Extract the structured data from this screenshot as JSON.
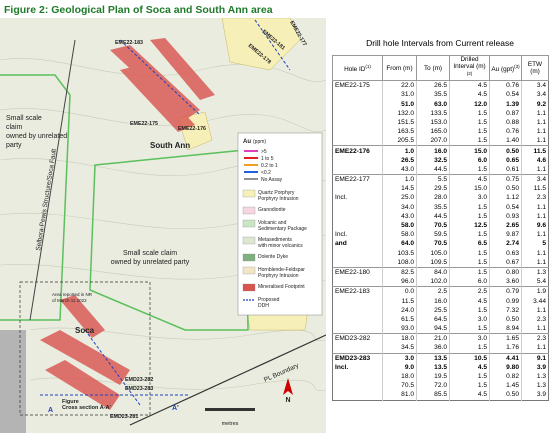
{
  "map": {
    "title": "Figure 2: Geological Plan of Soca and South Ann area",
    "areas": [
      "South Ann",
      "Soca"
    ],
    "claim_labels": [
      [
        "Small scale",
        "claim",
        "owned by unrelated",
        "party"
      ],
      [
        "Small scale claim",
        "owned by unrelated party"
      ]
    ],
    "fault_label": "Selbora-Pewis Structure/Soca Fault",
    "boundary_label": "PL Boundary",
    "note": [
      "Area reported in NR",
      "of March 11 2022"
    ],
    "section_label": [
      "Figure",
      "Cross section A-A'"
    ],
    "section_ends": [
      "A",
      "A'"
    ],
    "holes_north": [
      "EME22-183",
      "EME22-175",
      "EME22-176",
      "EME22-181",
      "EME22-178",
      "EME22-177"
    ],
    "holes_south": [
      "EMD23-282",
      "EMD23-283",
      "EMD23-281"
    ],
    "scale_unit": "metres",
    "north": "N"
  },
  "legend": {
    "title": "Au",
    "unit": "(ppm)",
    "grades": [
      {
        "label": ">5",
        "color": "#e040c0"
      },
      {
        "label": "1 to 5",
        "color": "#e02020"
      },
      {
        "label": "0.2 to 1",
        "color": "#f0a020"
      },
      {
        "label": "<0.2",
        "color": "#2060e0"
      },
      {
        "label": "No Assay",
        "color": "#909090"
      }
    ],
    "units": [
      {
        "lines": [
          "Quartz Porphyry",
          "Porphyry Intrusion"
        ],
        "color": "#f6efb8"
      },
      {
        "lines": [
          "Granodiorite"
        ],
        "color": "#f4d7e0"
      },
      {
        "lines": [
          "Volcanic and",
          "Sedimentary Package"
        ],
        "color": "#c9e6c4"
      },
      {
        "lines": [
          "Metasediments",
          "with minor volcanics"
        ],
        "color": "#dfe6d2"
      },
      {
        "lines": [
          "Dolerite Dyke"
        ],
        "color": "#7fb07f"
      },
      {
        "lines": [
          "Hornblende-Feldspar",
          "Porphyry Intrusion"
        ],
        "color": "#f2e6c8"
      },
      {
        "lines": [
          "Mineralised Footprint"
        ],
        "color": "#d9534f"
      },
      {
        "lines": [
          "Proposed",
          "DDH"
        ],
        "color": "#2040c0"
      }
    ]
  },
  "table": {
    "title": "Drill hole Intervals from Current release",
    "headers": [
      {
        "text": "Hole ID",
        "note": "(1)"
      },
      {
        "text": "From (m)"
      },
      {
        "text": "To (m)"
      },
      {
        "text": "Drilled Interval (m)",
        "note": "(2)"
      },
      {
        "text": "Au (gpt)",
        "note": "(3)"
      },
      {
        "text": "ETW (m)"
      }
    ],
    "rows": [
      {
        "cells": [
          "EME22-175",
          "22.0",
          "26.5",
          "4.5",
          "0.76",
          "3.4"
        ]
      },
      {
        "cells": [
          "",
          "31.0",
          "35.5",
          "4.5",
          "0.54",
          "3.4"
        ]
      },
      {
        "cells": [
          "",
          "51.0",
          "63.0",
          "12.0",
          "1.39",
          "9.2"
        ],
        "bold": true
      },
      {
        "cells": [
          "",
          "132.0",
          "133.5",
          "1.5",
          "0.87",
          "1.1"
        ]
      },
      {
        "cells": [
          "",
          "151.5",
          "153.0",
          "1.5",
          "0.88",
          "1.1"
        ]
      },
      {
        "cells": [
          "",
          "163.5",
          "165.0",
          "1.5",
          "0.76",
          "1.1"
        ]
      },
      {
        "cells": [
          "",
          "205.5",
          "207.0",
          "1.5",
          "1.40",
          "1.1"
        ]
      },
      {
        "cells": [
          "EME22-176",
          "1.0",
          "16.0",
          "15.0",
          "0.50",
          "11.5"
        ],
        "bold": true
      },
      {
        "cells": [
          "",
          "26.5",
          "32.5",
          "6.0",
          "0.65",
          "4.6"
        ],
        "bold": true
      },
      {
        "cells": [
          "",
          "43.0",
          "44.5",
          "1.5",
          "0.61",
          "1.1"
        ]
      },
      {
        "cells": [
          "EME22-177",
          "1.0",
          "5.5",
          "4.5",
          "0.75",
          "3.4"
        ]
      },
      {
        "cells": [
          "",
          "14.5",
          "29.5",
          "15.0",
          "0.50",
          "11.5"
        ]
      },
      {
        "cells": [
          "Incl.",
          "25.0",
          "28.0",
          "3.0",
          "1.12",
          "2.3"
        ]
      },
      {
        "cells": [
          "",
          "34.0",
          "35.5",
          "1.5",
          "0.54",
          "1.1"
        ]
      },
      {
        "cells": [
          "",
          "43.0",
          "44.5",
          "1.5",
          "0.93",
          "1.1"
        ]
      },
      {
        "cells": [
          "",
          "58.0",
          "70.5",
          "12.5",
          "2.65",
          "9.6"
        ],
        "bold": true
      },
      {
        "cells": [
          "Incl.",
          "58.0",
          "59.5",
          "1.5",
          "9.87",
          "1.1"
        ]
      },
      {
        "cells": [
          "and",
          "64.0",
          "70.5",
          "6.5",
          "2.74",
          "5"
        ],
        "bold": true
      },
      {
        "cells": [
          "",
          "103.5",
          "105.0",
          "1.5",
          "0.63",
          "1.1"
        ]
      },
      {
        "cells": [
          "",
          "108.0",
          "109.5",
          "1.5",
          "0.67",
          "1.1"
        ]
      },
      {
        "cells": [
          "EME22-180",
          "82.5",
          "84.0",
          "1.5",
          "0.80",
          "1.3"
        ]
      },
      {
        "cells": [
          "",
          "96.0",
          "102.0",
          "6.0",
          "3.60",
          "5.4"
        ]
      },
      {
        "cells": [
          "EME22-183",
          "0.0",
          "2.5",
          "2.5",
          "0.79",
          "1.9"
        ]
      },
      {
        "cells": [
          "",
          "11.5",
          "16.0",
          "4.5",
          "0.99",
          "3.44"
        ]
      },
      {
        "cells": [
          "",
          "24.0",
          "25.5",
          "1.5",
          "7.32",
          "1.1"
        ]
      },
      {
        "cells": [
          "",
          "61.5",
          "64.5",
          "3.0",
          "0.50",
          "2.3"
        ]
      },
      {
        "cells": [
          "",
          "93.0",
          "94.5",
          "1.5",
          "8.94",
          "1.1"
        ]
      },
      {
        "cells": [
          "EMD23-282",
          "18.0",
          "21.0",
          "3.0",
          "1.65",
          "2.3"
        ]
      },
      {
        "cells": [
          "",
          "34.5",
          "36.0",
          "1.5",
          "1.76",
          "1.1"
        ]
      },
      {
        "cells": [
          "EMD23-283",
          "3.0",
          "13.5",
          "10.5",
          "4.41",
          "9.1"
        ],
        "bold": true
      },
      {
        "cells": [
          "Incl.",
          "9.0",
          "13.5",
          "4.5",
          "9.80",
          "3.9"
        ],
        "bold": true
      },
      {
        "cells": [
          "",
          "18.0",
          "19.5",
          "1.5",
          "0.82",
          "1.3"
        ]
      },
      {
        "cells": [
          "",
          "70.5",
          "72.0",
          "1.5",
          "1.45",
          "1.3"
        ]
      },
      {
        "cells": [
          "",
          "81.0",
          "85.5",
          "4.5",
          "0.50",
          "3.9"
        ]
      }
    ]
  }
}
